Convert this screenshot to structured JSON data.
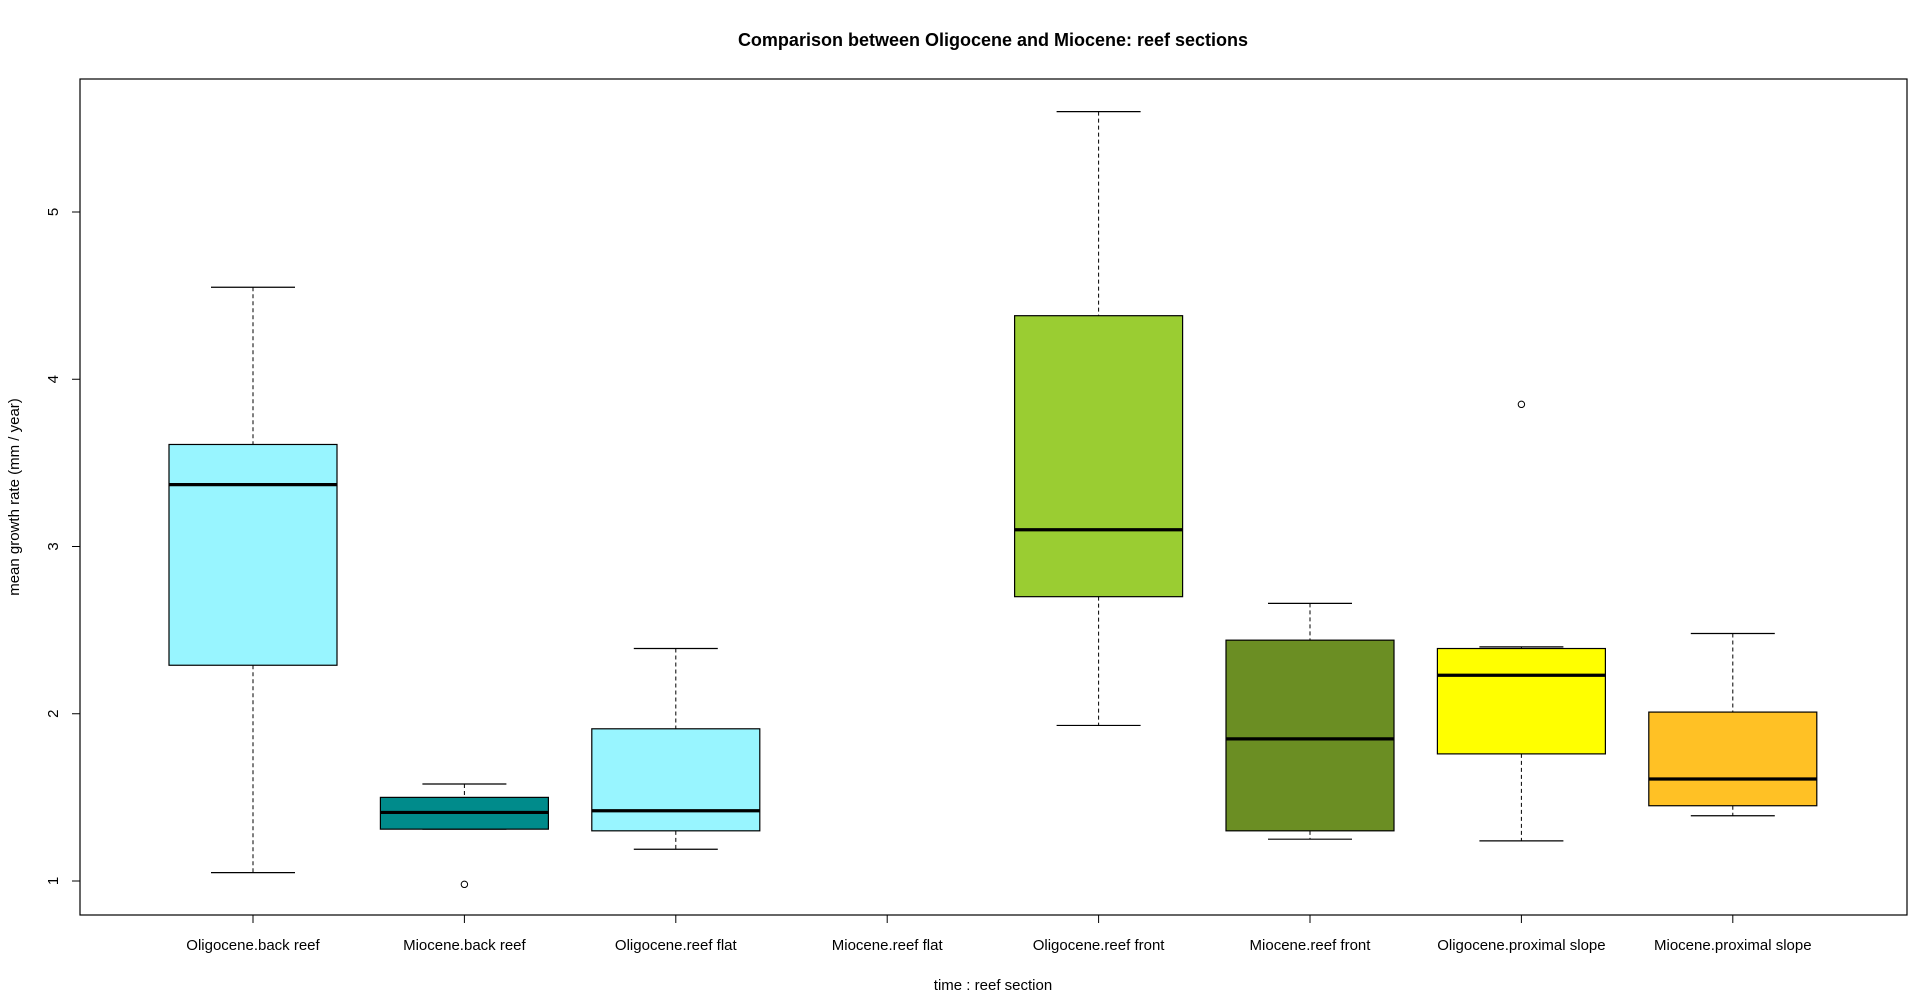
{
  "chart_data": {
    "type": "box",
    "title": "Comparison between Oligocene and Miocene: reef sections",
    "xlabel": "time : reef section",
    "ylabel": "mean growth rate (mm / year)",
    "ylim": [
      0.8,
      5.8
    ],
    "yticks": [
      1,
      2,
      3,
      4,
      5
    ],
    "grid": false,
    "categories": [
      "Oligocene.back reef",
      "Miocene.back reef",
      "Oligocene.reef flat",
      "Miocene.reef flat",
      "Oligocene.reef front",
      "Miocene.reef front",
      "Oligocene.proximal slope",
      "Miocene.proximal slope"
    ],
    "boxes": [
      {
        "category": "Oligocene.back reef",
        "min": 1.05,
        "q1": 2.29,
        "median": 3.37,
        "q3": 3.61,
        "max": 4.55,
        "outliers": [],
        "color": "#98F5FF"
      },
      {
        "category": "Miocene.back reef",
        "min": 1.31,
        "q1": 1.31,
        "median": 1.41,
        "q3": 1.5,
        "max": 1.58,
        "outliers": [
          0.98
        ],
        "color": "#008B8B"
      },
      {
        "category": "Oligocene.reef flat",
        "min": 1.19,
        "q1": 1.3,
        "median": 1.42,
        "q3": 1.91,
        "max": 2.39,
        "outliers": [],
        "color": "#98F5FF"
      },
      {
        "category": "Miocene.reef flat",
        "empty": true
      },
      {
        "category": "Oligocene.reef front",
        "min": 1.93,
        "q1": 2.7,
        "median": 3.1,
        "q3": 4.38,
        "max": 5.6,
        "outliers": [],
        "color": "#9ACD32"
      },
      {
        "category": "Miocene.reef front",
        "min": 1.25,
        "q1": 1.3,
        "median": 1.85,
        "q3": 2.44,
        "max": 2.66,
        "outliers": [],
        "color": "#6B8E23"
      },
      {
        "category": "Oligocene.proximal slope",
        "min": 1.24,
        "q1": 1.76,
        "median": 2.23,
        "q3": 2.39,
        "max": 2.4,
        "outliers": [
          3.85
        ],
        "color": "#FFFF00"
      },
      {
        "category": "Miocene.proximal slope",
        "min": 1.39,
        "q1": 1.45,
        "median": 1.61,
        "q3": 2.01,
        "max": 2.48,
        "outliers": [],
        "color": "#FFC125"
      }
    ]
  }
}
